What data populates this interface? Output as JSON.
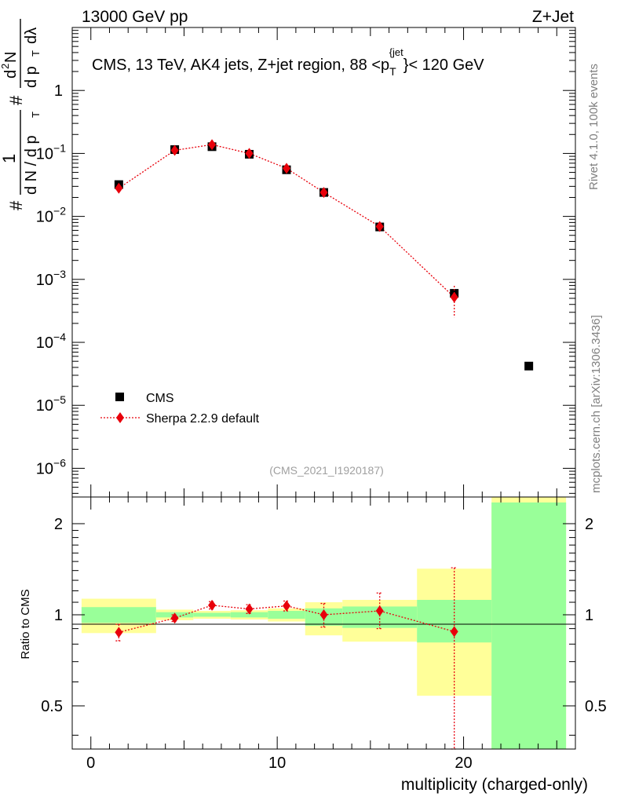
{
  "header": {
    "left": "13000 GeV pp",
    "right": "Z+Jet"
  },
  "side": {
    "rivet": "Rivet 4.1.0,  100k events",
    "mcplots": "mcplots.cern.ch [arXiv:1306.3436]"
  },
  "chart_data": [
    {
      "type": "scatter",
      "panel": "main",
      "title": "CMS, 13 TeV, AK4 jets, Z+jet region, 88 <p_T^{jet}< 120 GeV",
      "title_parts": {
        "prefix": "CMS, 13 TeV, AK4 jets, Z+jet region, 88 <p",
        "sub": "T",
        "sup": "{jet",
        "suffix": "}< 120 GeV"
      },
      "ylabel": "1/dN/dp_T  d^2N/dp_T dλ",
      "ylabel_parts": {
        "hash1": "#",
        "one": "1",
        "dn": "d N / d p",
        "t": "T",
        "hash2": "#",
        "d2n": "d",
        "two": "2",
        "n": "N",
        "dp": "d p",
        "dlam": "dλ"
      },
      "yscale": "log",
      "ylim": [
        3.5e-07,
        10
      ],
      "xlim": [
        -1,
        26
      ],
      "y_ticks": [
        {
          "value": 1,
          "base": "1",
          "exp": ""
        },
        {
          "value": 0.1,
          "base": "10",
          "exp": "−1"
        },
        {
          "value": 0.01,
          "base": "10",
          "exp": "−2"
        },
        {
          "value": 0.001,
          "base": "10",
          "exp": "−3"
        },
        {
          "value": 0.0001,
          "base": "10",
          "exp": "−4"
        },
        {
          "value": 1e-05,
          "base": "10",
          "exp": "−5"
        },
        {
          "value": 1e-06,
          "base": "10",
          "exp": "−6"
        }
      ],
      "watermark": "(CMS_2021_I1920187)",
      "legend_position": "bottom-left",
      "series": [
        {
          "name": "CMS",
          "marker": "square",
          "color": "#000000",
          "x": [
            1.5,
            4.5,
            6.5,
            8.5,
            10.5,
            12.5,
            15.5,
            19.5,
            23.5
          ],
          "y": [
            0.032,
            0.115,
            0.128,
            0.097,
            0.055,
            0.024,
            0.0068,
            0.0006,
            4.2e-05
          ]
        },
        {
          "name": "Sherpa 2.2.9 default",
          "marker": "diamond",
          "line": "dotted",
          "color": "#e8000b",
          "x": [
            1.5,
            4.5,
            6.5,
            8.5,
            10.5,
            12.5,
            15.5,
            19.5
          ],
          "y": [
            0.028,
            0.112,
            0.138,
            0.1,
            0.058,
            0.024,
            0.0069,
            0.00052
          ],
          "yerr_low": [
            0.0,
            0.0,
            0.0,
            0.0,
            0.0,
            0.0,
            0.0,
            0.00027
          ],
          "yerr_high": [
            0.0,
            0.0,
            0.0,
            0.0,
            0.0,
            0.0,
            0.0,
            0.00027
          ]
        }
      ]
    },
    {
      "type": "scatter",
      "panel": "ratio",
      "xlabel": "multiplicity (charged-only)",
      "ylabel": "Ratio to CMS",
      "yscale": "log",
      "ylim": [
        0.36,
        2.45
      ],
      "xlim": [
        -1,
        26
      ],
      "x_ticks": [
        0,
        10,
        20
      ],
      "y_ticks": [
        {
          "value": 0.5,
          "label": "0.5"
        },
        {
          "value": 1,
          "label": "1"
        },
        {
          "value": 2,
          "label": "2"
        }
      ],
      "bands": [
        {
          "x0": -0.5,
          "x1": 3.5,
          "green_lo": 0.94,
          "green_hi": 1.06,
          "yellow_lo": 0.87,
          "yellow_hi": 1.13
        },
        {
          "x0": 3.5,
          "x1": 5.5,
          "green_lo": 0.98,
          "green_hi": 1.02,
          "yellow_lo": 0.96,
          "yellow_hi": 1.04
        },
        {
          "x0": 5.5,
          "x1": 7.5,
          "green_lo": 0.985,
          "green_hi": 1.015,
          "yellow_lo": 0.97,
          "yellow_hi": 1.03
        },
        {
          "x0": 7.5,
          "x1": 9.5,
          "green_lo": 0.98,
          "green_hi": 1.02,
          "yellow_lo": 0.965,
          "yellow_hi": 1.035
        },
        {
          "x0": 9.5,
          "x1": 11.5,
          "green_lo": 0.97,
          "green_hi": 1.03,
          "yellow_lo": 0.95,
          "yellow_hi": 1.05
        },
        {
          "x0": 11.5,
          "x1": 13.5,
          "green_lo": 0.92,
          "green_hi": 1.05,
          "yellow_lo": 0.855,
          "yellow_hi": 1.1
        },
        {
          "x0": 13.5,
          "x1": 17.5,
          "green_lo": 0.905,
          "green_hi": 1.065,
          "yellow_lo": 0.815,
          "yellow_hi": 1.12
        },
        {
          "x0": 17.5,
          "x1": 21.5,
          "green_lo": 0.81,
          "green_hi": 1.12,
          "yellow_lo": 0.54,
          "yellow_hi": 1.42
        },
        {
          "x0": 21.5,
          "x1": 25.5,
          "green_lo": 0.36,
          "green_hi": 2.35,
          "yellow_lo": 0.36,
          "yellow_hi": 2.45
        }
      ],
      "series": [
        {
          "name": "Sherpa 2.2.9 default / CMS",
          "marker": "diamond",
          "line": "dotted",
          "color": "#e8000b",
          "x": [
            1.5,
            4.5,
            6.5,
            8.5,
            10.5,
            12.5,
            15.5,
            19.5
          ],
          "y": [
            0.875,
            0.975,
            1.075,
            1.045,
            1.07,
            1.0,
            1.03,
            0.88
          ],
          "yerr_low": [
            0.055,
            0.025,
            0.03,
            0.035,
            0.04,
            0.09,
            0.13,
            0.55
          ],
          "yerr_high": [
            0.055,
            0.025,
            0.03,
            0.035,
            0.04,
            0.09,
            0.15,
            0.55
          ]
        }
      ]
    }
  ]
}
